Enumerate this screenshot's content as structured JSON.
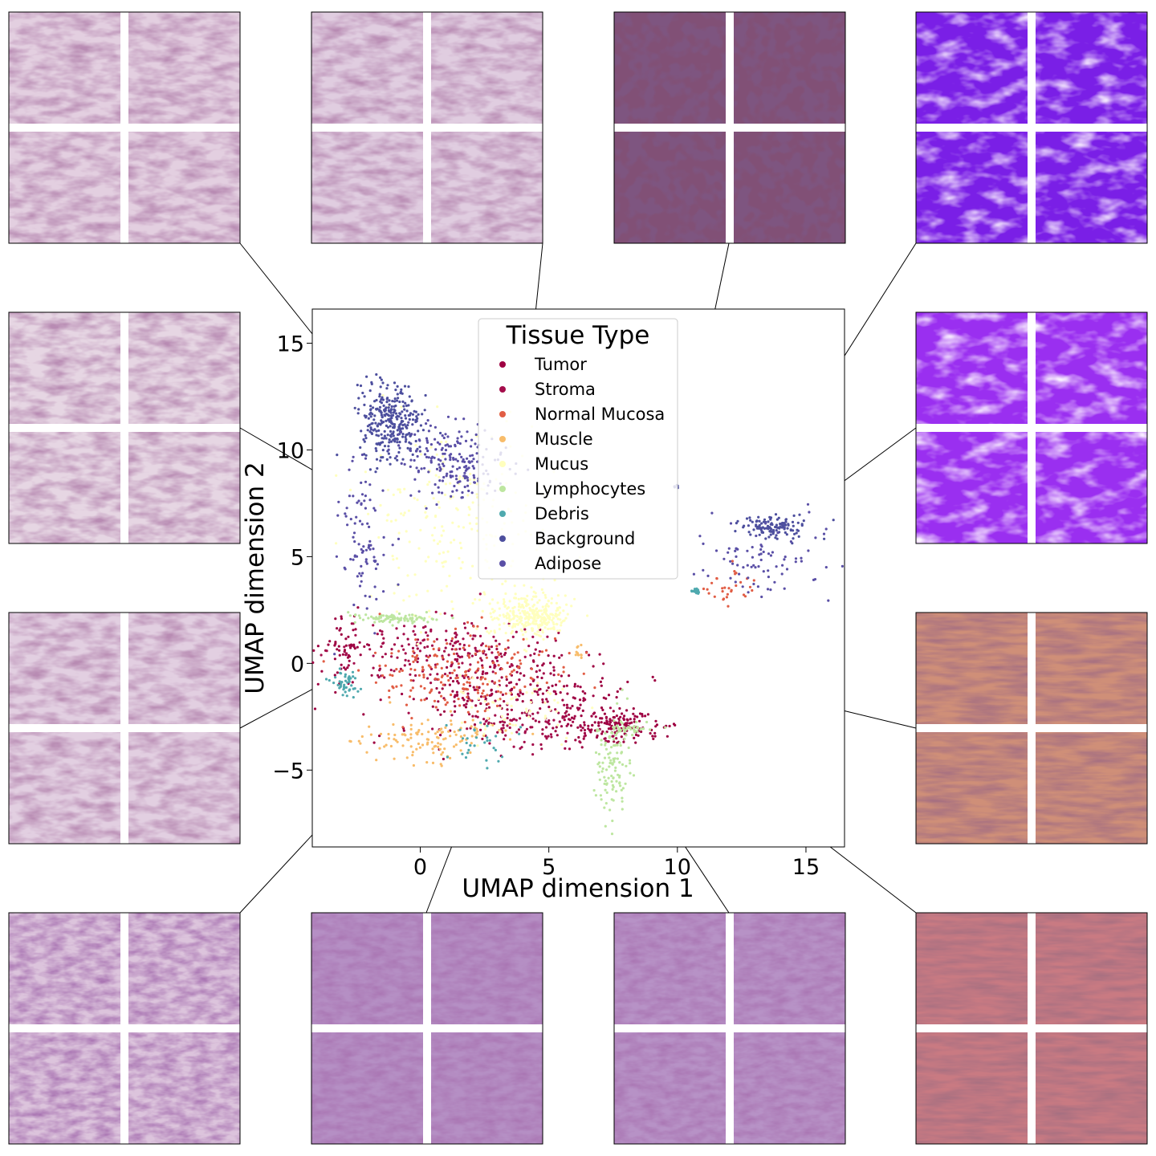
{
  "chart_data": {
    "type": "scatter",
    "title": "",
    "xlabel": "UMAP dimension 1",
    "ylabel": "UMAP dimension 2",
    "xlim": [
      -4.2,
      16.5
    ],
    "ylim": [
      -8.6,
      16.6
    ],
    "xticks": [
      0,
      5,
      10,
      15
    ],
    "yticks": [
      -5,
      0,
      5,
      10,
      15
    ],
    "grid": false,
    "legend": {
      "title": "Tissue Type",
      "placement": "top-center",
      "entries": [
        {
          "name": "Tumor",
          "color": "#9e0142"
        },
        {
          "name": "Stroma",
          "color": "#a40d4b"
        },
        {
          "name": "Normal Mucosa",
          "color": "#e15d45"
        },
        {
          "name": "Muscle",
          "color": "#f8bc6a"
        },
        {
          "name": "Mucus",
          "color": "#ffffbe"
        },
        {
          "name": "Lymphocytes",
          "color": "#bde6a0"
        },
        {
          "name": "Debris",
          "color": "#4fa9ae"
        },
        {
          "name": "Background",
          "color": "#4d4f9e"
        },
        {
          "name": "Adipose",
          "color": "#5a4fa6"
        }
      ]
    },
    "series": [
      {
        "name": "Tumor",
        "color": "#9e0142",
        "clusters": [
          {
            "cx": 3.5,
            "cy": -1.5,
            "sx": 2.5,
            "sy": 1.0,
            "n": 250
          },
          {
            "cx": 7.5,
            "cy": -2.9,
            "sx": 0.9,
            "sy": 0.4,
            "n": 150
          },
          {
            "cx": -3.0,
            "cy": 0.8,
            "sx": 0.4,
            "sy": 0.8,
            "n": 60
          }
        ]
      },
      {
        "name": "Stroma",
        "color": "#a40d4b",
        "clusters": [
          {
            "cx": 1.0,
            "cy": 0.6,
            "sx": 2.0,
            "sy": 0.8,
            "n": 200
          },
          {
            "cx": 4.5,
            "cy": -2.8,
            "sx": 1.5,
            "sy": 0.6,
            "n": 120
          }
        ]
      },
      {
        "name": "Normal Mucosa",
        "color": "#e15d45",
        "clusters": [
          {
            "cx": 1.5,
            "cy": -0.5,
            "sx": 2.0,
            "sy": 1.0,
            "n": 200
          },
          {
            "cx": 12.0,
            "cy": 3.6,
            "sx": 0.6,
            "sy": 0.4,
            "n": 30
          }
        ]
      },
      {
        "name": "Muscle",
        "color": "#f8bc6a",
        "clusters": [
          {
            "cx": 0.6,
            "cy": -3.5,
            "sx": 1.4,
            "sy": 0.5,
            "n": 120
          },
          {
            "cx": 6.1,
            "cy": 0.5,
            "sx": 0.1,
            "sy": 0.2,
            "n": 10
          }
        ]
      },
      {
        "name": "Mucus",
        "color": "#ffffbe",
        "clusters": [
          {
            "cx": 4.3,
            "cy": 2.2,
            "sx": 0.7,
            "sy": 0.5,
            "n": 300
          },
          {
            "cx": 1.5,
            "cy": 6.5,
            "sx": 1.8,
            "sy": 2.2,
            "n": 220
          },
          {
            "cx": 4.0,
            "cy": -2.0,
            "sx": 1.5,
            "sy": 1.0,
            "n": 60
          }
        ]
      },
      {
        "name": "Lymphocytes",
        "color": "#bde6a0",
        "clusters": [
          {
            "cx": -1.0,
            "cy": 2.1,
            "sx": 0.9,
            "sy": 0.12,
            "n": 90
          },
          {
            "cx": 7.5,
            "cy": -4.8,
            "sx": 0.35,
            "sy": 1.2,
            "n": 110
          },
          {
            "cx": 8.0,
            "cy": -3.1,
            "sx": 0.4,
            "sy": 0.12,
            "n": 40
          }
        ]
      },
      {
        "name": "Debris",
        "color": "#4fa9ae",
        "clusters": [
          {
            "cx": -2.9,
            "cy": -1.0,
            "sx": 0.3,
            "sy": 0.3,
            "n": 45
          },
          {
            "cx": 10.7,
            "cy": 3.4,
            "sx": 0.08,
            "sy": 0.06,
            "n": 18
          },
          {
            "cx": 2.5,
            "cy": -3.5,
            "sx": 0.8,
            "sy": 0.5,
            "n": 30
          }
        ]
      },
      {
        "name": "Background",
        "color": "#4d4f9e",
        "clusters": [
          {
            "cx": -1.2,
            "cy": 11.3,
            "sx": 0.6,
            "sy": 0.9,
            "n": 300
          },
          {
            "cx": 13.8,
            "cy": 6.4,
            "sx": 0.6,
            "sy": 0.25,
            "n": 120
          },
          {
            "cx": 10.0,
            "cy": 8.3,
            "sx": 0.1,
            "sy": 0.05,
            "n": 6
          }
        ]
      },
      {
        "name": "Adipose",
        "color": "#5a4fa6",
        "clusters": [
          {
            "cx": 1.4,
            "cy": 9.4,
            "sx": 1.0,
            "sy": 0.9,
            "n": 200
          },
          {
            "cx": -2.2,
            "cy": 6.0,
            "sx": 0.5,
            "sy": 2.0,
            "n": 90
          },
          {
            "cx": 13.5,
            "cy": 5.0,
            "sx": 1.2,
            "sy": 0.9,
            "n": 80
          }
        ]
      }
    ],
    "annotations": [
      {
        "id": "patch-top-1",
        "x": 3.5,
        "y": 3.8
      },
      {
        "id": "patch-top-2",
        "x": 3.4,
        "y": 3.8
      },
      {
        "id": "patch-top-3",
        "x": 10.0,
        "y": 8.2
      },
      {
        "id": "patch-top-4",
        "x": 10.7,
        "y": 3.4
      },
      {
        "id": "patch-left-1",
        "x": 3.2,
        "y": 3.9
      },
      {
        "id": "patch-left-2",
        "x": 3.4,
        "y": 3.7
      },
      {
        "id": "patch-right-1",
        "x": 10.7,
        "y": 3.4
      },
      {
        "id": "patch-right-2",
        "x": 6.1,
        "y": 0.8
      },
      {
        "id": "patch-bottom-1",
        "x": 4.0,
        "y": 2.6
      },
      {
        "id": "patch-bottom-2",
        "x": 4.6,
        "y": 2.0
      },
      {
        "id": "patch-bottom-3",
        "x": 4.7,
        "y": 1.6
      },
      {
        "id": "patch-bottom-4",
        "x": 6.0,
        "y": 0.6
      }
    ]
  }
}
